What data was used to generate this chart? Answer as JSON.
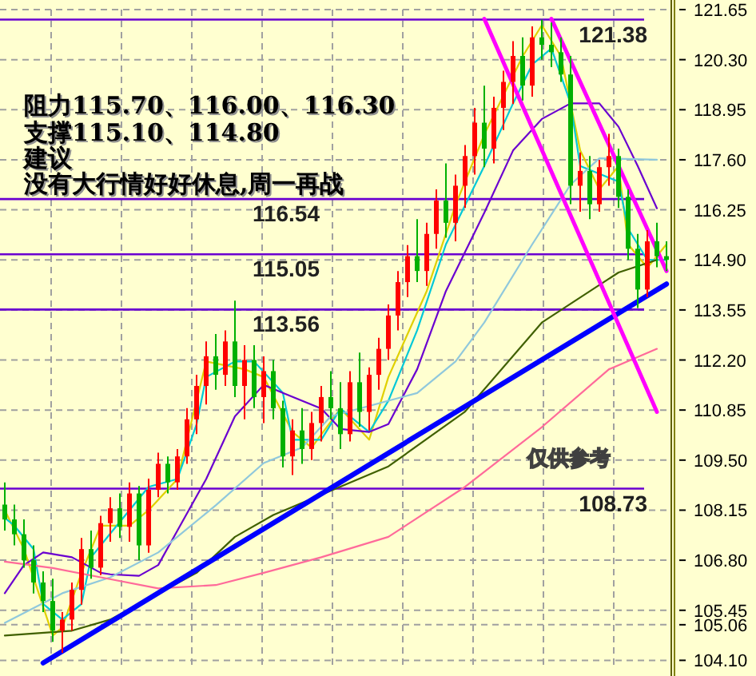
{
  "chart_data": {
    "type": "candlestick",
    "categories": [
      null,
      null,
      null,
      null,
      null,
      null,
      null,
      null,
      null,
      null,
      null,
      null,
      null,
      null,
      null,
      null,
      null,
      null,
      null,
      null,
      null,
      null,
      null,
      null,
      null,
      null,
      null,
      null,
      null,
      null,
      null,
      null,
      null,
      null,
      null,
      null,
      null,
      null,
      null,
      null,
      null,
      null,
      null,
      null,
      null,
      null,
      null,
      null,
      null,
      null,
      null,
      null,
      null,
      null,
      null,
      null,
      null,
      null,
      null,
      null,
      null,
      null,
      null,
      null,
      null,
      null,
      null,
      null,
      null,
      null
    ],
    "ohlc": [
      [
        108.3,
        108.9,
        107.6,
        107.9
      ],
      [
        107.9,
        108.3,
        107.2,
        107.5
      ],
      [
        107.5,
        107.9,
        106.6,
        106.8
      ],
      [
        106.8,
        107.2,
        105.9,
        106.2
      ],
      [
        106.2,
        106.5,
        105.4,
        105.7
      ],
      [
        105.7,
        106.3,
        104.6,
        104.9
      ],
      [
        104.9,
        105.4,
        104.3,
        105.2
      ],
      [
        105.2,
        106.2,
        104.9,
        106.0
      ],
      [
        106.0,
        107.4,
        105.6,
        107.1
      ],
      [
        107.1,
        107.6,
        106.3,
        106.6
      ],
      [
        106.6,
        108.0,
        106.4,
        107.8
      ],
      [
        107.8,
        108.5,
        107.3,
        108.2
      ],
      [
        108.2,
        108.6,
        107.4,
        107.7
      ],
      [
        107.7,
        108.9,
        107.3,
        108.6
      ],
      [
        108.6,
        108.8,
        106.8,
        107.2
      ],
      [
        107.2,
        109.0,
        107.0,
        108.7
      ],
      [
        108.7,
        109.7,
        108.5,
        109.4
      ],
      [
        109.4,
        109.6,
        108.6,
        108.9
      ],
      [
        108.9,
        109.8,
        108.7,
        109.6
      ],
      [
        109.6,
        110.9,
        109.4,
        110.6
      ],
      [
        110.6,
        111.8,
        110.2,
        111.5
      ],
      [
        111.5,
        112.7,
        111.0,
        112.3
      ],
      [
        112.3,
        112.9,
        111.4,
        111.8
      ],
      [
        111.8,
        113.0,
        111.5,
        112.7
      ],
      [
        112.7,
        113.8,
        111.2,
        111.5
      ],
      [
        111.5,
        112.6,
        110.6,
        112.2
      ],
      [
        112.2,
        112.6,
        110.9,
        111.2
      ],
      [
        111.2,
        112.3,
        110.5,
        111.9
      ],
      [
        111.9,
        112.2,
        110.6,
        110.9
      ],
      [
        110.9,
        111.1,
        109.3,
        109.6
      ],
      [
        109.6,
        110.6,
        109.1,
        110.3
      ],
      [
        110.3,
        110.9,
        109.4,
        109.8
      ],
      [
        109.8,
        110.8,
        109.5,
        110.5
      ],
      [
        110.5,
        111.5,
        110.0,
        111.2
      ],
      [
        111.2,
        111.9,
        110.6,
        110.9
      ],
      [
        110.9,
        111.6,
        109.8,
        110.2
      ],
      [
        110.2,
        111.9,
        110.0,
        111.6
      ],
      [
        111.6,
        112.4,
        110.4,
        110.8
      ],
      [
        110.8,
        112.0,
        110.3,
        111.8
      ],
      [
        111.8,
        112.8,
        111.4,
        112.5
      ],
      [
        112.5,
        113.7,
        112.2,
        113.4
      ],
      [
        113.4,
        114.6,
        113.0,
        114.3
      ],
      [
        114.3,
        115.3,
        113.9,
        115.0
      ],
      [
        115.0,
        116.0,
        114.3,
        114.6
      ],
      [
        114.6,
        115.9,
        114.2,
        115.6
      ],
      [
        115.6,
        116.8,
        115.2,
        116.5
      ],
      [
        116.5,
        117.5,
        115.5,
        115.9
      ],
      [
        115.9,
        117.2,
        115.4,
        116.9
      ],
      [
        116.9,
        118.0,
        116.3,
        117.7
      ],
      [
        117.7,
        119.0,
        117.2,
        118.6
      ],
      [
        118.6,
        119.6,
        117.4,
        117.9
      ],
      [
        117.9,
        119.3,
        117.5,
        119.0
      ],
      [
        119.0,
        120.0,
        118.4,
        119.7
      ],
      [
        119.7,
        120.8,
        119.1,
        120.4
      ],
      [
        120.4,
        120.9,
        119.2,
        119.6
      ],
      [
        119.6,
        121.2,
        119.3,
        120.9
      ],
      [
        120.9,
        121.38,
        120.3,
        120.7
      ],
      [
        120.7,
        121.3,
        120.1,
        120.5
      ],
      [
        120.5,
        120.9,
        119.7,
        119.9
      ],
      [
        119.9,
        120.4,
        116.4,
        116.9
      ],
      [
        116.9,
        117.8,
        116.2,
        117.3
      ],
      [
        117.3,
        117.7,
        116.0,
        116.4
      ],
      [
        116.4,
        117.6,
        116.2,
        117.4
      ],
      [
        117.4,
        118.3,
        116.9,
        117.7
      ],
      [
        117.7,
        117.9,
        116.3,
        116.6
      ],
      [
        116.6,
        116.8,
        114.9,
        115.2
      ],
      [
        115.2,
        115.6,
        113.6,
        114.1
      ],
      [
        114.1,
        115.7,
        113.9,
        115.4
      ],
      [
        115.4,
        115.9,
        114.7,
        115.0
      ],
      [
        115.0,
        115.4,
        114.6,
        114.9
      ]
    ],
    "colors": [
      "#00b000",
      "#00b000",
      "#00b000",
      "#00b000",
      "#00b000",
      "#00b000",
      "#ff0000",
      "#ff0000",
      "#ff0000",
      "#00b000",
      "#ff0000",
      "#ff0000",
      "#00b000",
      "#ff0000",
      "#00b000",
      "#ff0000",
      "#ff0000",
      "#00b000",
      "#ff0000",
      "#ff0000",
      "#ff0000",
      "#ff0000",
      "#00b000",
      "#ff0000",
      "#00b000",
      "#ff0000",
      "#00b000",
      "#ff0000",
      "#00b000",
      "#00b000",
      "#ff0000",
      "#00b000",
      "#ff0000",
      "#ff0000",
      "#00b000",
      "#00b000",
      "#ff0000",
      "#00b000",
      "#ff0000",
      "#ff0000",
      "#ff0000",
      "#ff0000",
      "#ff0000",
      "#00b000",
      "#ff0000",
      "#ff0000",
      "#00b000",
      "#ff0000",
      "#ff0000",
      "#ff0000",
      "#00b000",
      "#ff0000",
      "#ff0000",
      "#ff0000",
      "#00b000",
      "#ff0000",
      "#00b000",
      "#00b000",
      "#00b000",
      "#00b000",
      "#ff0000",
      "#00b000",
      "#ff0000",
      "#ff0000",
      "#00b000",
      "#00b000",
      "#00b000",
      "#ff0000",
      "#00b000",
      "#00b000"
    ],
    "series": [
      {
        "type": "line",
        "color": "#e0d000",
        "values": [
          108.15,
          null,
          107.1,
          null,
          null,
          104.77,
          104.99,
          null,
          106.46,
          null,
          107.73,
          null,
          null,
          107.73,
          null,
          108.15,
          null,
          null,
          108.99,
          null,
          null,
          112.16,
          null,
          null,
          null,
          111.95,
          null,
          111.74,
          null,
          null,
          110.26,
          null,
          109.84,
          null,
          null,
          110.89,
          null,
          null,
          110.05,
          null,
          111.74,
          null,
          null,
          null,
          114.06,
          null,
          null,
          116.38,
          null,
          null,
          118.28,
          null,
          null,
          null,
          120.39,
          null,
          121.23,
          null,
          120.39,
          null,
          117.85,
          null,
          116.8,
          null,
          117.43,
          115.32,
          null,
          114.69,
          null,
          115.32
        ]
      },
      {
        "type": "line",
        "color": "#00c8d8",
        "values": [
          107.94,
          107.73,
          null,
          107.1,
          105.62,
          null,
          105.2,
          null,
          105.62,
          106.88,
          null,
          107.52,
          null,
          108.15,
          null,
          108.78,
          null,
          null,
          108.99,
          null,
          110.47,
          111.74,
          null,
          null,
          112.16,
          null,
          112.16,
          null,
          null,
          111.31,
          110.05,
          null,
          null,
          110.05,
          null,
          110.89,
          null,
          null,
          110.26,
          null,
          111.1,
          null,
          null,
          113.0,
          null,
          null,
          115.32,
          null,
          null,
          null,
          117.43,
          null,
          null,
          119.12,
          null,
          120.17,
          null,
          120.6,
          null,
          119.12,
          117.43,
          null,
          117.22,
          null,
          117.01,
          115.74,
          null,
          114.9,
          null,
          114.9
        ]
      },
      {
        "type": "line",
        "color": "#6a00d0",
        "values": [
          105.91,
          null,
          106.67,
          null,
          107.01,
          null,
          null,
          106.88,
          null,
          null,
          106.46,
          106.42,
          null,
          null,
          106.38,
          null,
          106.67,
          null,
          107.6,
          null,
          null,
          108.99,
          null,
          null,
          110.68,
          null,
          null,
          111.53,
          null,
          111.31,
          null,
          null,
          null,
          110.89,
          null,
          110.34,
          null,
          null,
          110.26,
          null,
          110.47,
          null,
          null,
          111.95,
          null,
          null,
          114.06,
          null,
          null,
          null,
          116.17,
          null,
          null,
          117.85,
          null,
          null,
          118.7,
          null,
          null,
          119.12,
          null,
          null,
          119.12,
          null,
          118.49,
          null,
          117.43,
          null,
          116.29,
          null
        ]
      },
      {
        "type": "line",
        "color": "#90c8dc",
        "values": [
          105.11,
          null,
          null,
          null,
          null,
          null,
          105.91,
          null,
          null,
          null,
          null,
          106.34,
          null,
          null,
          null,
          null,
          107.01,
          null,
          null,
          null,
          null,
          null,
          108.28,
          null,
          null,
          null,
          null,
          109.42,
          null,
          null,
          null,
          109.84,
          null,
          null,
          110.68,
          null,
          null,
          null,
          null,
          null,
          111.1,
          null,
          null,
          111.31,
          null,
          null,
          null,
          112.16,
          null,
          null,
          113.21,
          null,
          null,
          null,
          null,
          115.32,
          null,
          null,
          null,
          116.93,
          null,
          null,
          117.64,
          null,
          null,
          null,
          null,
          null,
          117.6,
          null
        ]
      },
      {
        "type": "line",
        "color": "#406000",
        "values": [
          104.77,
          null,
          null,
          null,
          null,
          null,
          null,
          104.9,
          null,
          null,
          null,
          105.2,
          null,
          null,
          null,
          null,
          null,
          null,
          null,
          null,
          106.46,
          null,
          null,
          null,
          107.43,
          null,
          null,
          null,
          108.02,
          null,
          null,
          null,
          null,
          null,
          null,
          null,
          null,
          null,
          null,
          null,
          109.33,
          null,
          null,
          null,
          null,
          null,
          null,
          null,
          110.81,
          null,
          null,
          null,
          null,
          null,
          null,
          null,
          113.21,
          null,
          null,
          null,
          null,
          null,
          null,
          null,
          114.56,
          null,
          null,
          null,
          114.9,
          null
        ]
      },
      {
        "type": "line",
        "color": "#ff6a9a",
        "values": [
          106.76,
          null,
          null,
          null,
          null,
          106.59,
          null,
          null,
          null,
          null,
          106.34,
          null,
          null,
          null,
          null,
          null,
          106.04,
          null,
          null,
          null,
          null,
          null,
          106.13,
          null,
          null,
          null,
          null,
          106.46,
          null,
          null,
          null,
          null,
          null,
          106.88,
          null,
          null,
          null,
          null,
          null,
          null,
          107.43,
          null,
          null,
          null,
          null,
          null,
          null,
          null,
          108.78,
          null,
          null,
          null,
          null,
          null,
          null,
          null,
          110.39,
          null,
          null,
          null,
          null,
          null,
          null,
          111.95,
          null,
          null,
          null,
          null,
          112.5,
          null
        ]
      },
      {
        "type": "line",
        "color": "#0000ff",
        "values": [
          null,
          null,
          null,
          null,
          104.03,
          null,
          null,
          null,
          null,
          null,
          null,
          null,
          null,
          null,
          null,
          null,
          null,
          null,
          null,
          null,
          null,
          null,
          null,
          null,
          null,
          null,
          null,
          null,
          null,
          null,
          null,
          null,
          null,
          null,
          null,
          null,
          null,
          null,
          null,
          null,
          null,
          null,
          null,
          null,
          null,
          null,
          null,
          null,
          null,
          null,
          null,
          null,
          null,
          null,
          null,
          null,
          null,
          null,
          null,
          null,
          null,
          null,
          null,
          null,
          null,
          null,
          null,
          null,
          null,
          114.25
        ]
      },
      {
        "type": "line",
        "color": "#ff00ff",
        "values": [
          null,
          null,
          null,
          null,
          null,
          null,
          null,
          null,
          null,
          null,
          null,
          null,
          null,
          null,
          null,
          null,
          null,
          null,
          null,
          null,
          null,
          null,
          null,
          null,
          null,
          null,
          null,
          null,
          null,
          null,
          null,
          null,
          null,
          null,
          null,
          null,
          null,
          null,
          null,
          null,
          null,
          null,
          null,
          null,
          null,
          null,
          null,
          null,
          null,
          null,
          121.4,
          null,
          null,
          null,
          null,
          null,
          null,
          null,
          null,
          null,
          null,
          null,
          null,
          null,
          null,
          null,
          null,
          null,
          110.8,
          null
        ]
      },
      {
        "type": "line",
        "color": "#ff00ff",
        "values": [
          null,
          null,
          null,
          null,
          null,
          null,
          null,
          null,
          null,
          null,
          null,
          null,
          null,
          null,
          null,
          null,
          null,
          null,
          null,
          null,
          null,
          null,
          null,
          null,
          null,
          null,
          null,
          null,
          null,
          null,
          null,
          null,
          null,
          null,
          null,
          null,
          null,
          null,
          null,
          null,
          null,
          null,
          null,
          null,
          null,
          null,
          null,
          null,
          null,
          null,
          null,
          null,
          null,
          null,
          null,
          null,
          null,
          121.4,
          null,
          null,
          null,
          null,
          null,
          null,
          null,
          null,
          null,
          null,
          null,
          114.6
        ]
      }
    ],
    "ylim": [
      103.85,
      121.65
    ],
    "yticks": [
      {
        "value": 104.1,
        "label": "104.10"
      },
      {
        "value": 105.06,
        "label": "105.06"
      },
      {
        "value": 105.45,
        "label": "105.45"
      },
      {
        "value": 106.8,
        "label": "106.80"
      },
      {
        "value": 108.15,
        "label": "108.15"
      },
      {
        "value": 109.5,
        "label": "109.50"
      },
      {
        "value": 110.85,
        "label": "110.85"
      },
      {
        "value": 112.2,
        "label": "112.20"
      },
      {
        "value": 113.55,
        "label": "113.55"
      },
      {
        "value": 114.9,
        "label": "114.90"
      },
      {
        "value": 116.25,
        "label": "116.25"
      },
      {
        "value": 117.6,
        "label": "117.60"
      },
      {
        "value": 118.95,
        "label": "118.95"
      },
      {
        "value": 120.3,
        "label": "120.30"
      },
      {
        "value": 121.65,
        "label": "121.65"
      }
    ],
    "ref_lines": [
      {
        "axis": "y",
        "value": 121.38,
        "label": "121.38",
        "color": "#6a00d0"
      },
      {
        "axis": "y",
        "value": 116.54,
        "label": "116.54",
        "color": "#6a00d0"
      },
      {
        "axis": "y",
        "value": 115.05,
        "label": "115.05",
        "color": "#6a00d0"
      },
      {
        "axis": "y",
        "value": 113.56,
        "label": "113.56",
        "color": "#6a00d0"
      },
      {
        "axis": "y",
        "value": 108.73,
        "label": "108.73",
        "color": "#6a00d0"
      }
    ],
    "annotations": [
      "阻力115.70、116.00、116.30",
      "支撑115.10、114.80",
      "建议",
      "没有大行情好好休息,周一再战",
      "仅供参考"
    ],
    "grid": true,
    "tick_labels": "y"
  }
}
